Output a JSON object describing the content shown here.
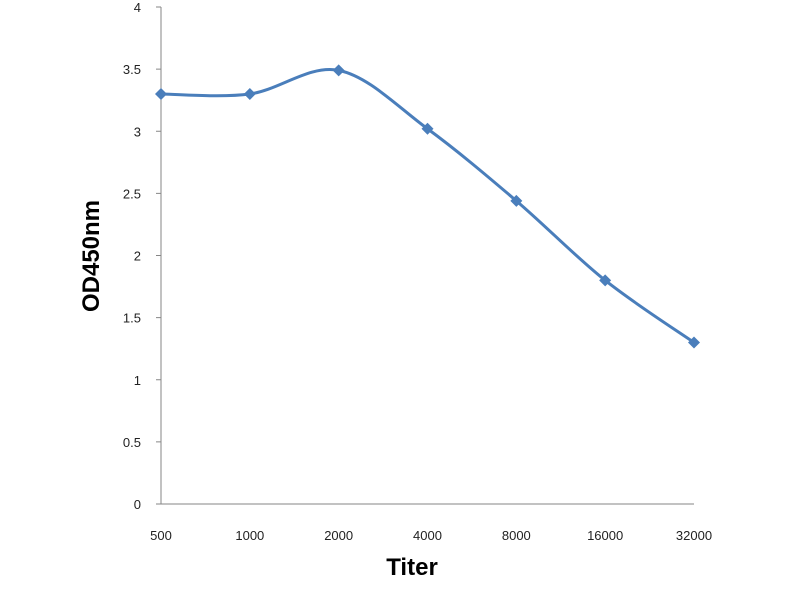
{
  "chart_data": {
    "type": "line",
    "categories": [
      "500",
      "1000",
      "2000",
      "4000",
      "8000",
      "16000",
      "32000"
    ],
    "series": [
      {
        "values": [
          3.3,
          3.3,
          3.49,
          3.02,
          2.44,
          1.8,
          1.3
        ]
      }
    ],
    "title": "",
    "xlabel": "Titer",
    "ylabel": "OD450nm",
    "ylim": [
      0,
      4
    ],
    "yticks": [
      "0",
      "0.5",
      "1",
      "1.5",
      "2",
      "2.5",
      "3",
      "3.5",
      "4"
    ],
    "grid": false,
    "legend": "none",
    "line_color": "#4a7ebb",
    "marker": "diamond"
  }
}
